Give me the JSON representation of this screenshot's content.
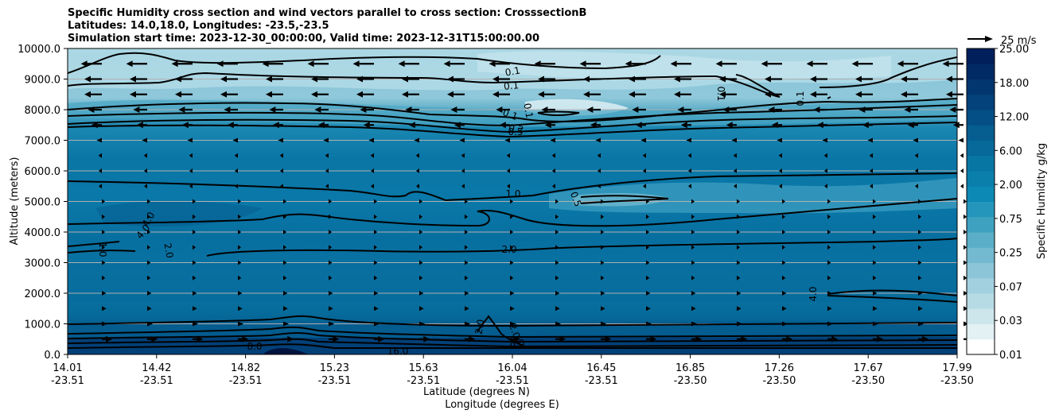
{
  "chart_data": {
    "type": "heatmap",
    "title": [
      "Specific Humidity cross section and wind vectors parallel to cross section: CrosssectionB",
      "Latitudes: 14.0,18.0, Longitudes: -23.5,-23.5",
      "Simulation start time: 2023-12-30_00:00:00, Valid time: 2023-12-31T15:00:00.00"
    ],
    "ylabel": "Altitude (meters)",
    "xlabel_lat": "Latitude (degrees N)",
    "xlabel_lon": "Longitude (degrees E)",
    "ylim": [
      0,
      10000
    ],
    "y_ticks": [
      "0.0",
      "1000.0",
      "2000.0",
      "3000.0",
      "4000.0",
      "5000.0",
      "6000.0",
      "7000.0",
      "8000.0",
      "9000.0",
      "10000.0"
    ],
    "y_tick_values": [
      0,
      1000,
      2000,
      3000,
      4000,
      5000,
      6000,
      7000,
      8000,
      9000,
      10000
    ],
    "x_ticks_lat": [
      "14.01",
      "14.42",
      "14.82",
      "15.23",
      "15.63",
      "16.04",
      "16.45",
      "16.85",
      "17.26",
      "17.67",
      "17.99"
    ],
    "x_ticks_lon": [
      "-23.51",
      "-23.51",
      "-23.51",
      "-23.51",
      "-23.51",
      "-23.51",
      "-23.51",
      "-23.50",
      "-23.50",
      "-23.50",
      "-23.50"
    ],
    "grid": "horizontal",
    "colorbar": {
      "label": "Specific Humidity g/kg",
      "tick_labels": [
        "0.01",
        "0.03",
        "0.07",
        "0.25",
        "0.75",
        "2.00",
        "6.00",
        "12.00",
        "18.00",
        "25.00"
      ],
      "colors": [
        "#ffffff",
        "#e3f1f4",
        "#cde6ec",
        "#b7dbe5",
        "#a2d0de",
        "#8cc5d7",
        "#73b9cf",
        "#5aaec8",
        "#3fa1c0",
        "#2596bb",
        "#0c89b4",
        "#0a7fac",
        "#0876a3",
        "#06699a",
        "#055d90",
        "#044f85",
        "#03427a",
        "#02366f",
        "#012b65",
        "#001f5b"
      ]
    },
    "wind_reference": {
      "label": "25 m/s",
      "speed": 25
    },
    "wind_rows": [
      {
        "altitude": 9500,
        "u": -6
      },
      {
        "altitude": 9000,
        "u": -5
      },
      {
        "altitude": 8500,
        "u": -5
      },
      {
        "altitude": 8000,
        "u": -4
      },
      {
        "altitude": 7500,
        "u": -3
      },
      {
        "altitude": 7000,
        "u": -1.5
      },
      {
        "altitude": 6500,
        "u": -1
      },
      {
        "altitude": 6000,
        "u": -0.5
      },
      {
        "altitude": 5500,
        "u": -0.3
      },
      {
        "altitude": 5000,
        "u": 0.3
      },
      {
        "altitude": 4500,
        "u": 0.5
      },
      {
        "altitude": 4000,
        "u": 0.6
      },
      {
        "altitude": 3500,
        "u": 0.8
      },
      {
        "altitude": 3000,
        "u": 1
      },
      {
        "altitude": 2500,
        "u": 1
      },
      {
        "altitude": 2000,
        "u": 1.2
      },
      {
        "altitude": 1500,
        "u": 1.3
      },
      {
        "altitude": 1000,
        "u": 1.6
      },
      {
        "altitude": 500,
        "u": 3
      }
    ],
    "contour_labels": [
      "0.1",
      "0.1",
      "0.1",
      "0.1",
      "0.1",
      "0.1",
      "0.2",
      "0.5",
      "0.5",
      "1.0",
      "1.0",
      "2.0",
      "2.0",
      "2.0",
      "2.0",
      "4.0",
      "4.0",
      "4.0",
      "8.0",
      "8.0",
      "16.0"
    ]
  }
}
